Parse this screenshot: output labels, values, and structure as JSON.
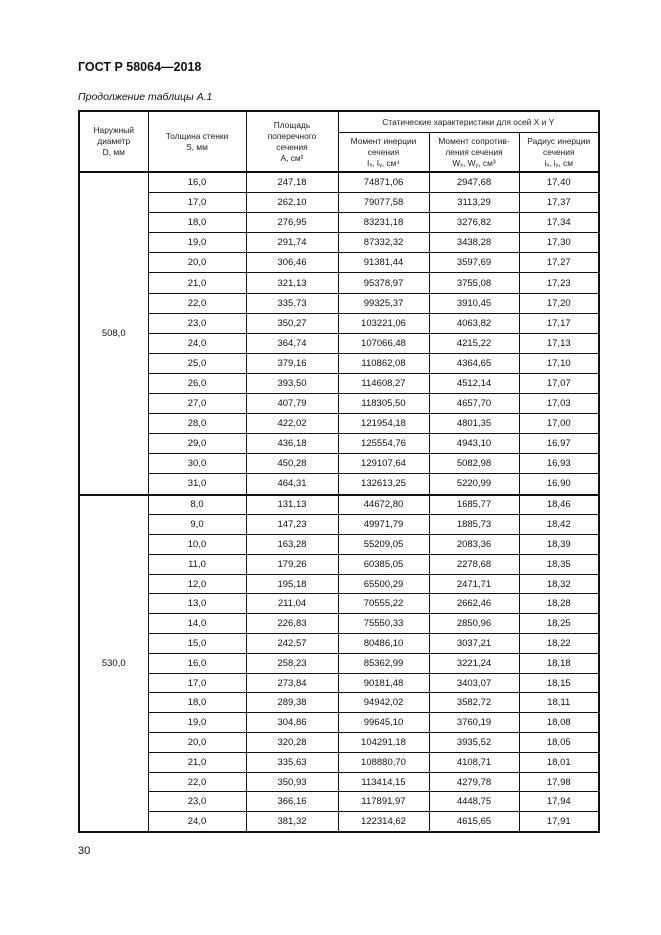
{
  "document_id": "ГОСТ Р 58064—2018",
  "table_caption": "Продолжение таблицы А.1",
  "headers": {
    "diameter": [
      "Наружный",
      "диаметр",
      "D, мм"
    ],
    "thickness": [
      "Толщина стенки",
      "S, мм"
    ],
    "area": [
      "Площадь",
      "поперечного",
      "сечения",
      "A, см²"
    ],
    "static_group": "Статические характеристики  для осей X и Y",
    "inertia_moment": [
      "Момент инерции",
      "сечения",
      "Iₓ, Iᵧ, см⁴"
    ],
    "section_modulus": [
      "Момент сопротив-",
      "ления сечения",
      "Wₓ, Wᵧ, см³"
    ],
    "inertia_radius": [
      "Радиус инерции",
      "сечения",
      "iₓ, iᵧ, см"
    ]
  },
  "groups": [
    {
      "diameter": "508,0",
      "rows": [
        [
          "16,0",
          "247,18",
          "74871,06",
          "2947,68",
          "17,40"
        ],
        [
          "17,0",
          "262,10",
          "79077,58",
          "3113,29",
          "17,37"
        ],
        [
          "18,0",
          "276,95",
          "83231,18",
          "3276,82",
          "17,34"
        ],
        [
          "19,0",
          "291,74",
          "87332,32",
          "3438,28",
          "17,30"
        ],
        [
          "20,0",
          "306,46",
          "91381,44",
          "3597,69",
          "17,27"
        ],
        [
          "21,0",
          "321,13",
          "95378,97",
          "3755,08",
          "17,23"
        ],
        [
          "22,0",
          "335,73",
          "99325,37",
          "3910,45",
          "17,20"
        ],
        [
          "23,0",
          "350,27",
          "103221,06",
          "4063,82",
          "17,17"
        ],
        [
          "24,0",
          "364,74",
          "107066,48",
          "4215,22",
          "17,13"
        ],
        [
          "25,0",
          "379,16",
          "110862,08",
          "4364,65",
          "17,10"
        ],
        [
          "26,0",
          "393,50",
          "114608,27",
          "4512,14",
          "17,07"
        ],
        [
          "27,0",
          "407,79",
          "118305,50",
          "4657,70",
          "17,03"
        ],
        [
          "28,0",
          "422,02",
          "121954,18",
          "4801,35",
          "17,00"
        ],
        [
          "29,0",
          "436,18",
          "125554,76",
          "4943,10",
          "16,97"
        ],
        [
          "30,0",
          "450,28",
          "129107,64",
          "5082,98",
          "16,93"
        ],
        [
          "31,0",
          "464,31",
          "132613,25",
          "5220,99",
          "16,90"
        ]
      ]
    },
    {
      "diameter": "530,0",
      "rows": [
        [
          "8,0",
          "131,13",
          "44672,80",
          "1685,77",
          "18,46"
        ],
        [
          "9,0",
          "147,23",
          "49971,79",
          "1885,73",
          "18,42"
        ],
        [
          "10,0",
          "163,28",
          "55209,05",
          "2083,36",
          "18,39"
        ],
        [
          "11,0",
          "179,26",
          "60385,05",
          "2278,68",
          "18,35"
        ],
        [
          "12,0",
          "195,18",
          "65500,29",
          "2471,71",
          "18,32"
        ],
        [
          "13,0",
          "211,04",
          "70555,22",
          "2662,46",
          "18,28"
        ],
        [
          "14,0",
          "226,83",
          "75550,33",
          "2850,96",
          "18,25"
        ],
        [
          "15,0",
          "242,57",
          "80486,10",
          "3037,21",
          "18,22"
        ],
        [
          "16,0",
          "258,23",
          "85362,99",
          "3221,24",
          "18,18"
        ],
        [
          "17,0",
          "273,84",
          "90181,48",
          "3403,07",
          "18,15"
        ],
        [
          "18,0",
          "289,38",
          "94942,02",
          "3582,72",
          "18,11"
        ],
        [
          "19,0",
          "304,86",
          "99645,10",
          "3760,19",
          "18,08"
        ],
        [
          "20,0",
          "320,28",
          "104291,18",
          "3935,52",
          "18,05"
        ],
        [
          "21,0",
          "335,63",
          "108880,70",
          "4108,71",
          "18,01"
        ],
        [
          "22,0",
          "350,93",
          "113414,15",
          "4279,78",
          "17,98"
        ],
        [
          "23,0",
          "366,16",
          "117891,97",
          "4448,75",
          "17,94"
        ],
        [
          "24,0",
          "381,32",
          "122314,62",
          "4615,65",
          "17,91"
        ]
      ]
    }
  ],
  "page_number": "30"
}
